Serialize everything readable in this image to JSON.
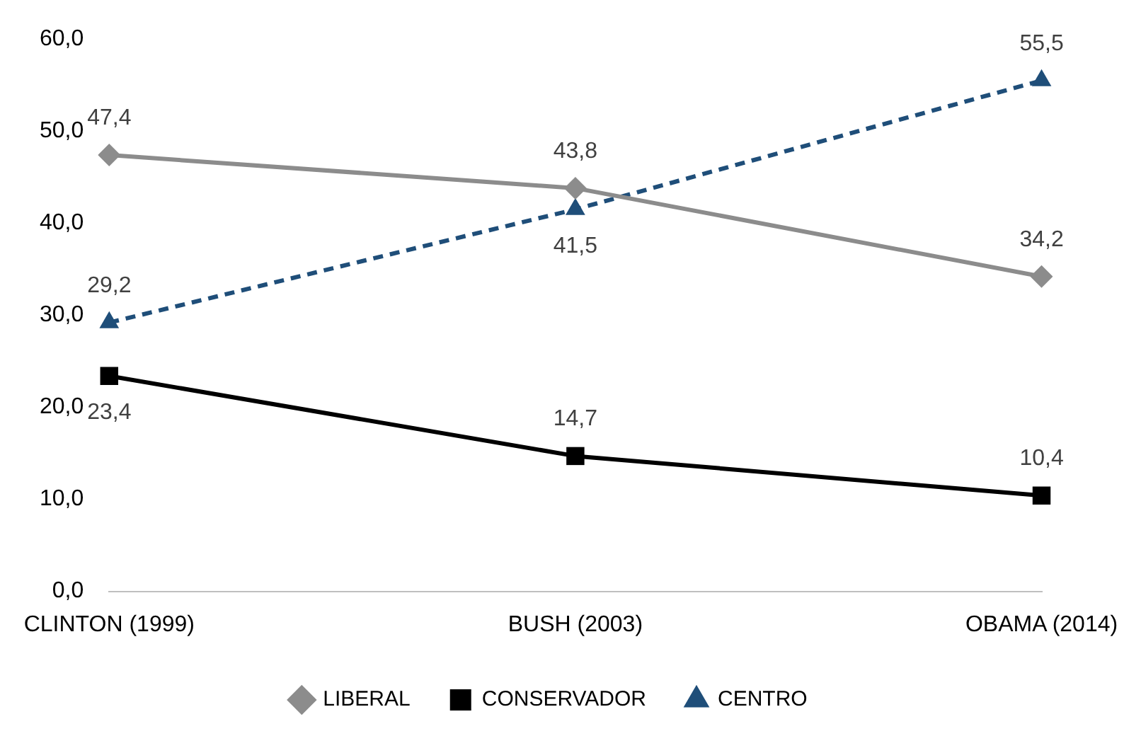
{
  "chart_data": {
    "type": "line",
    "categories": [
      "CLINTON (1999)",
      "BUSH (2003)",
      "OBAMA (2014)"
    ],
    "series": [
      {
        "name": "LIBERAL",
        "color": "#8c8c8c",
        "values": [
          47.4,
          43.8,
          34.2
        ],
        "marker": "diamond",
        "line_style": "solid",
        "value_labels": [
          "47,4",
          "43,8",
          "34,2"
        ]
      },
      {
        "name": "CONSERVADOR",
        "color": "#000000",
        "values": [
          23.4,
          14.7,
          10.4
        ],
        "marker": "square",
        "line_style": "solid",
        "value_labels": [
          "23,4",
          "14,7",
          "10,4"
        ]
      },
      {
        "name": "CENTRO",
        "color": "#1f4e79",
        "values": [
          29.2,
          41.5,
          55.5
        ],
        "marker": "triangle",
        "line_style": "dashed",
        "value_labels": [
          "29,2",
          "41,5",
          "55,5"
        ]
      }
    ],
    "ylim": [
      0,
      60
    ],
    "yticks": [
      {
        "value": 0,
        "label": "0,0"
      },
      {
        "value": 10,
        "label": "10,0"
      },
      {
        "value": 20,
        "label": "20,0"
      },
      {
        "value": 30,
        "label": "30,0"
      },
      {
        "value": 40,
        "label": "40,0"
      },
      {
        "value": 50,
        "label": "50,0"
      },
      {
        "value": 60,
        "label": "60,0"
      }
    ],
    "grid": false,
    "legend": "bottom"
  }
}
